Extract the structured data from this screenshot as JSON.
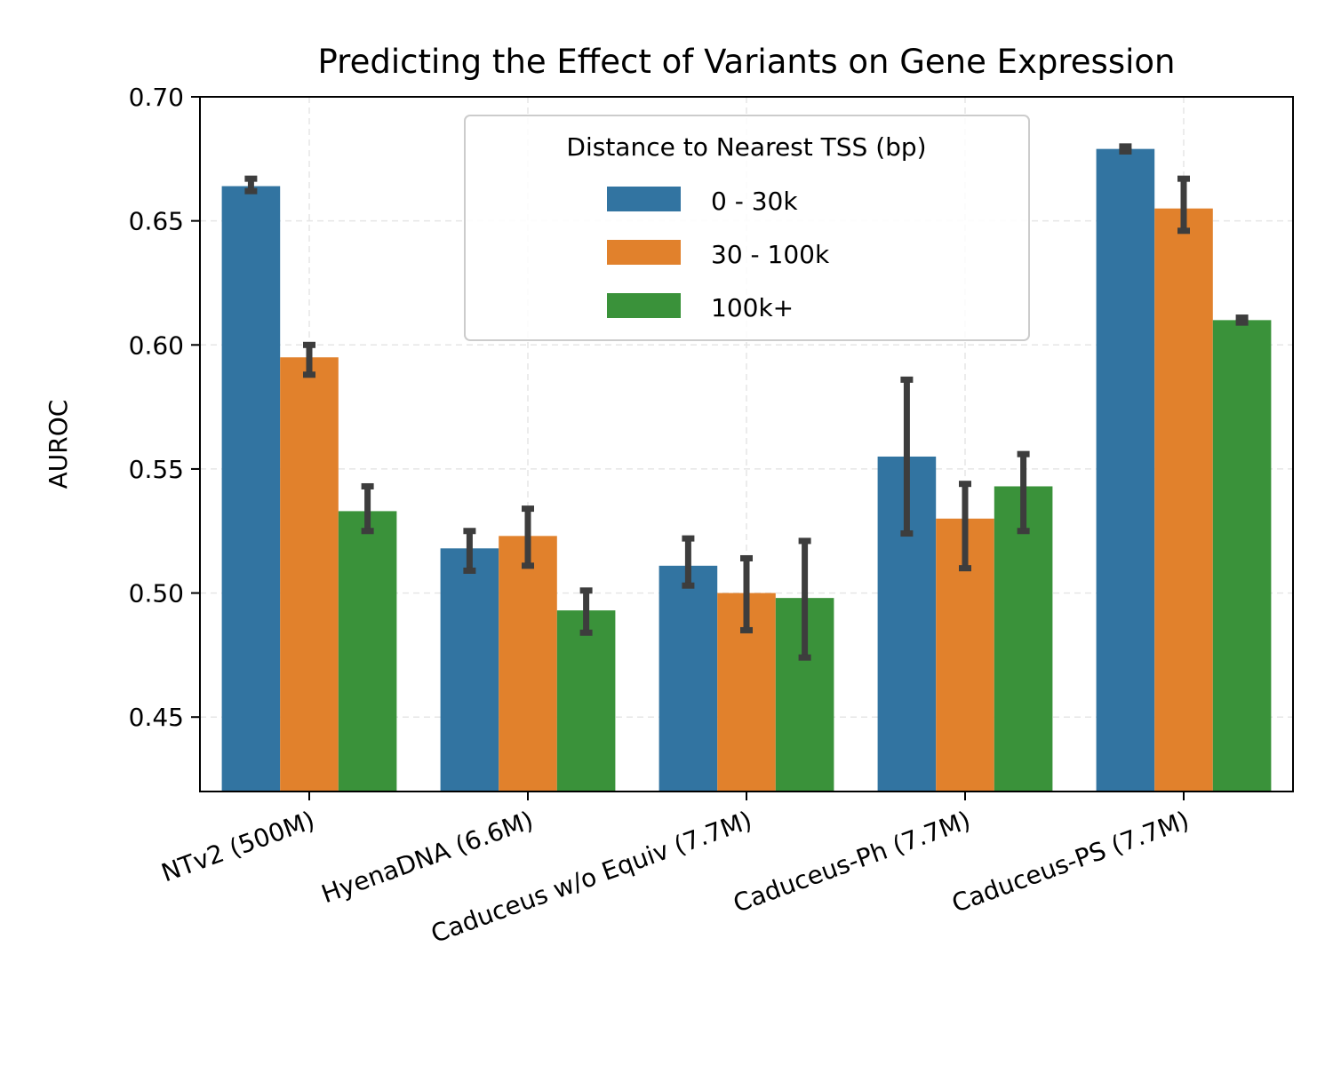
{
  "chart_data": {
    "type": "bar",
    "title": "Predicting the Effect of Variants on Gene Expression",
    "xlabel": "",
    "ylabel": "AUROC",
    "ylim": [
      0.42,
      0.7
    ],
    "yticks": [
      0.45,
      0.5,
      0.55,
      0.6,
      0.65,
      0.7
    ],
    "ytick_labels": [
      "0.45",
      "0.50",
      "0.55",
      "0.60",
      "0.65",
      "0.70"
    ],
    "grid": true,
    "legend_title": "Distance to Nearest TSS (bp)",
    "legend_position": "top-center",
    "categories": [
      "NTv2 (500M)",
      "HyenaDNA (6.6M)",
      "Caduceus w/o Equiv (7.7M)",
      "Caduceus-Ph (7.7M)",
      "Caduceus-PS (7.7M)"
    ],
    "series": [
      {
        "name": "0 - 30k",
        "color": "#3274a1",
        "values": [
          0.664,
          0.518,
          0.511,
          0.555,
          0.679
        ],
        "err_low": [
          0.662,
          0.509,
          0.503,
          0.524,
          0.678
        ],
        "err_high": [
          0.667,
          0.525,
          0.522,
          0.586,
          0.68
        ]
      },
      {
        "name": "30 - 100k",
        "color": "#e1812c",
        "values": [
          0.595,
          0.523,
          0.5,
          0.53,
          0.655
        ],
        "err_low": [
          0.588,
          0.511,
          0.485,
          0.51,
          0.646
        ],
        "err_high": [
          0.6,
          0.534,
          0.514,
          0.544,
          0.667
        ]
      },
      {
        "name": "100k+",
        "color": "#3a923a",
        "values": [
          0.533,
          0.493,
          0.498,
          0.543,
          0.61
        ],
        "err_low": [
          0.525,
          0.484,
          0.474,
          0.525,
          0.609
        ],
        "err_high": [
          0.543,
          0.501,
          0.521,
          0.556,
          0.611
        ]
      }
    ]
  }
}
